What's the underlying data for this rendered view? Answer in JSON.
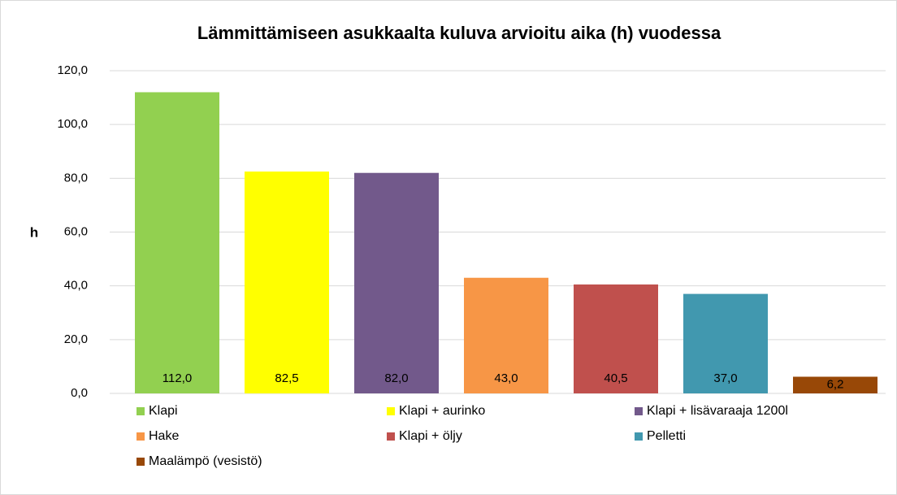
{
  "chart_data": {
    "type": "bar",
    "title": "Lämmittämiseen asukkaalta kuluva arvioitu aika (h) vuodessa",
    "y_label": "h",
    "series": [
      {
        "name": "Klapi",
        "color": "#92d050",
        "values": [
          112.0
        ],
        "value_labels": [
          "112,0"
        ]
      },
      {
        "name": "Klapi + aurinko",
        "color": "#ffff00",
        "values": [
          82.5
        ],
        "value_labels": [
          "82,5"
        ]
      },
      {
        "name": "Klapi + lisävaraaja 1200l",
        "color": "#72598b",
        "values": [
          82.0
        ],
        "value_labels": [
          "82,0"
        ]
      },
      {
        "name": "Hake",
        "color": "#f79646",
        "values": [
          43.0
        ],
        "value_labels": [
          "43,0"
        ]
      },
      {
        "name": "Klapi + öljy",
        "color": "#c0504d",
        "values": [
          40.5
        ],
        "value_labels": [
          "40,5"
        ]
      },
      {
        "name": "Pelletti",
        "color": "#4198af",
        "values": [
          37.0
        ],
        "value_labels": [
          "37,0"
        ]
      },
      {
        "name": "Maalämpö (vesistö)",
        "color": "#984807",
        "values": [
          6.2
        ],
        "value_labels": [
          "6,2"
        ]
      }
    ],
    "ylim": [
      0,
      120
    ],
    "yticks": [
      {
        "value": 0,
        "label": "0,0"
      },
      {
        "value": 20,
        "label": "20,0"
      },
      {
        "value": 40,
        "label": "40,0"
      },
      {
        "value": 60,
        "label": "60,0"
      },
      {
        "value": 80,
        "label": "80,0"
      },
      {
        "value": 100,
        "label": "100,0"
      },
      {
        "value": 120,
        "label": "120,0"
      }
    ],
    "grid": true
  }
}
